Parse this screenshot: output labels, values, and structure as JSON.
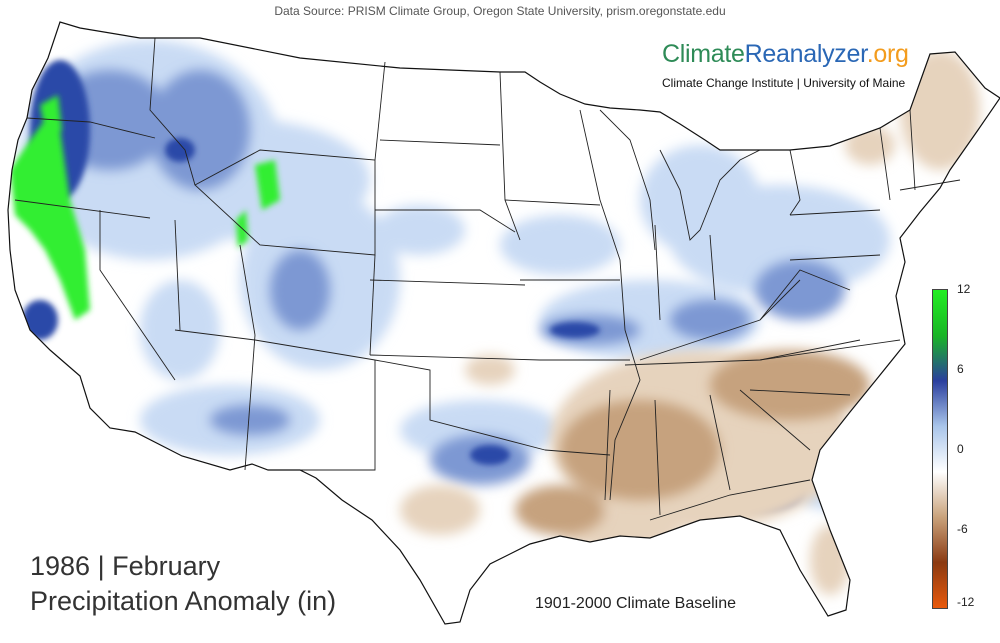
{
  "header": {
    "data_source": "Data Source: PRISM Climate Group, Oregon State University, prism.oregonstate.edu"
  },
  "brand": {
    "part1": "Climate",
    "part2": "Reanalyzer",
    "part3": ".org",
    "tagline": "Climate Change Institute | University of Maine",
    "colors": {
      "part1": "#2e8b57",
      "part2": "#2a67b5",
      "part3": "#f39c1d"
    }
  },
  "title": {
    "line1": "1986 | February",
    "line2": "Precipitation Anomaly (in)"
  },
  "baseline": "1901-2000 Climate Baseline",
  "legend": {
    "ticks": [
      "12",
      "6",
      "0",
      "-6",
      "-12"
    ],
    "values": [
      12,
      6,
      0,
      -6,
      -12
    ],
    "range": [
      -12,
      12
    ],
    "colors": [
      "#e8590c",
      "#8b3a12",
      "#c9a27b",
      "#ffffff",
      "#a9c5ea",
      "#2b3f9e",
      "#19b526",
      "#22ee22"
    ]
  },
  "map": {
    "region": "contiguous-united-states",
    "anomaly_colors": {
      "wet_extreme": "#33ee33",
      "wet_strong": "#1f3c95",
      "wet_moderate": "#5577c4",
      "wet_light": "#c9dbf4",
      "neutral": "#ffffff",
      "dry_light": "#e6d3bd",
      "dry_moderate": "#c6a27e"
    }
  }
}
